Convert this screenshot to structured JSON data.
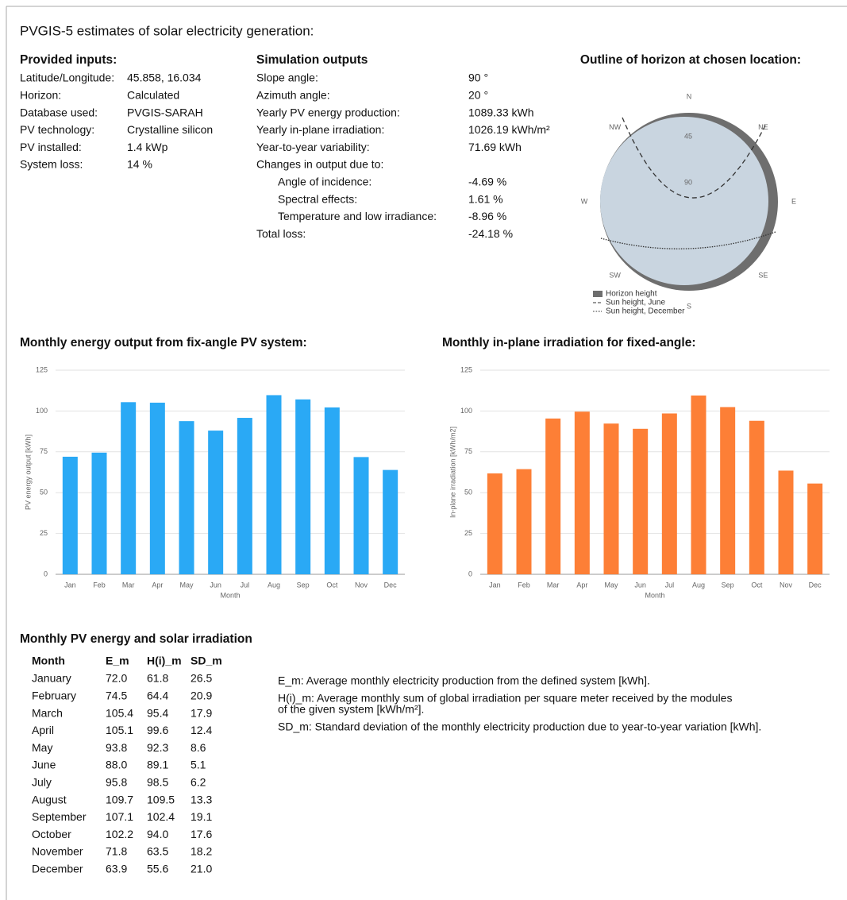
{
  "title": "PVGIS-5 estimates of solar electricity generation:",
  "inputs": {
    "heading": "Provided inputs:",
    "rows": [
      [
        "Latitude/Longitude:",
        "45.858, 16.034"
      ],
      [
        "Horizon:",
        "Calculated"
      ],
      [
        "Database used:",
        "PVGIS-SARAH"
      ],
      [
        "PV technology:",
        "Crystalline silicon"
      ],
      [
        "PV installed:",
        "1.4 kWp"
      ],
      [
        "System loss:",
        "14 %"
      ]
    ]
  },
  "outputs": {
    "heading": "Simulation outputs",
    "rows": [
      [
        "Slope angle:",
        "90 °"
      ],
      [
        "Azimuth angle:",
        "20 °"
      ],
      [
        "Yearly PV energy production:",
        "1089.33 kWh"
      ],
      [
        "Yearly in-plane irradiation:",
        "1026.19 kWh/m²"
      ],
      [
        "Year-to-year variability:",
        "71.69 kWh"
      ],
      [
        "Changes in output due to:"
      ],
      [
        "Angle of incidence:",
        "-4.69 %"
      ],
      [
        "Spectral effects:",
        "1.61 %"
      ],
      [
        "Temperature and low irradiance:",
        "-8.96 %"
      ],
      [
        "Total loss:",
        "-24.18 %"
      ]
    ]
  },
  "horizon": {
    "heading": "Outline of horizon at chosen location:",
    "directions": [
      "N",
      "NE",
      "E",
      "SE",
      "S",
      "SW",
      "W",
      "NW"
    ],
    "rings": [
      "45",
      "90"
    ],
    "legend": [
      "Horizon height",
      "Sun height, June",
      "Sun height, December"
    ]
  },
  "chart_data": [
    {
      "type": "bar",
      "title": "Monthly energy output from fix-angle PV system:",
      "categories": [
        "Jan",
        "Feb",
        "Mar",
        "Apr",
        "May",
        "Jun",
        "Jul",
        "Aug",
        "Sep",
        "Oct",
        "Nov",
        "Dec"
      ],
      "values": [
        72.0,
        74.5,
        105.4,
        105.1,
        93.8,
        88.0,
        95.8,
        109.7,
        107.1,
        102.2,
        71.8,
        63.9
      ],
      "color": "#2aa9f5",
      "ylim": [
        0,
        125
      ],
      "yticks": [
        0,
        25,
        50,
        75,
        100,
        125
      ],
      "grid": true,
      "x_label": "Month",
      "y_label": "PV energy output [kWh]"
    },
    {
      "type": "bar",
      "title": "Monthly in-plane irradiation for fixed-angle:",
      "categories": [
        "Jan",
        "Feb",
        "Mar",
        "Apr",
        "May",
        "Jun",
        "Jul",
        "Aug",
        "Sep",
        "Oct",
        "Nov",
        "Dec"
      ],
      "values": [
        61.8,
        64.4,
        95.4,
        99.6,
        92.3,
        89.1,
        98.5,
        109.5,
        102.4,
        94.0,
        63.5,
        55.6
      ],
      "color": "#fd7f36",
      "ylim": [
        0,
        125
      ],
      "yticks": [
        0,
        25,
        50,
        75,
        100,
        125
      ],
      "grid": true,
      "x_label": "Month",
      "y_label": "In-plane irradiation [kWh/m2]"
    }
  ],
  "table": {
    "heading": "Monthly PV energy and solar irradiation",
    "columns": [
      "Month",
      "E_m",
      "H(i)_m",
      "SD_m"
    ],
    "rows": [
      [
        "January",
        "72.0",
        "61.8",
        "26.5"
      ],
      [
        "February",
        "74.5",
        "64.4",
        "20.9"
      ],
      [
        "March",
        "105.4",
        "95.4",
        "17.9"
      ],
      [
        "April",
        "105.1",
        "99.6",
        "12.4"
      ],
      [
        "May",
        "93.8",
        "92.3",
        "8.6"
      ],
      [
        "June",
        "88.0",
        "89.1",
        "5.1"
      ],
      [
        "July",
        "95.8",
        "98.5",
        "6.2"
      ],
      [
        "August",
        "109.7",
        "109.5",
        "13.3"
      ],
      [
        "September",
        "107.1",
        "102.4",
        "19.1"
      ],
      [
        "October",
        "102.2",
        "94.0",
        "17.6"
      ],
      [
        "November",
        "71.8",
        "63.5",
        "18.2"
      ],
      [
        "December",
        "63.9",
        "55.6",
        "21.0"
      ]
    ]
  },
  "notes": [
    [
      "E_m: Average monthly electricity production from the defined system [kWh]."
    ],
    [
      "H(i)_m: Average monthly sum of global irradiation per square meter received by the modules",
      "of the given system [kWh/m²]."
    ],
    [
      "SD_m: Standard deviation of the monthly electricity production due to year-to-year variation [kWh]."
    ]
  ]
}
